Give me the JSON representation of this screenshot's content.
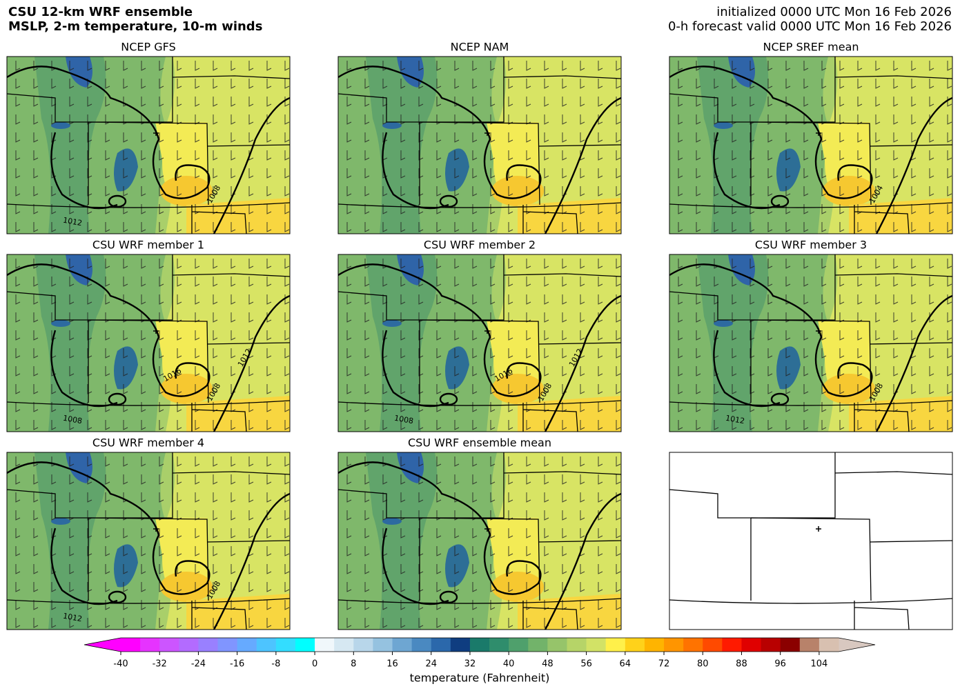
{
  "header": {
    "title": [
      "CSU 12-km WRF ensemble",
      "MSLP, 2-m temperature, 10-m winds"
    ],
    "valid": [
      "initialized 0000 UTC Mon 16 Feb 2026",
      "0-h forecast valid 0000 UTC Mon 16 Feb 2026"
    ]
  },
  "panels": [
    {
      "title": "NCEP GFS",
      "contour_labels": [
        "1008",
        "1012"
      ]
    },
    {
      "title": "NCEP NAM",
      "contour_labels": []
    },
    {
      "title": "NCEP SREF mean",
      "contour_labels": [
        "1004"
      ]
    },
    {
      "title": "CSU WRF member 1",
      "contour_labels": [
        "1008",
        "1008",
        "1012",
        "1016"
      ]
    },
    {
      "title": "CSU WRF member 2",
      "contour_labels": [
        "1008",
        "1008",
        "1012",
        "1016"
      ]
    },
    {
      "title": "CSU WRF member 3",
      "contour_labels": [
        "1008",
        "1012"
      ]
    },
    {
      "title": "CSU WRF member 4",
      "contour_labels": [
        "1008",
        "1012"
      ]
    },
    {
      "title": "CSU WRF ensemble mean",
      "contour_labels": []
    }
  ],
  "colorbar": {
    "label": "temperature (Fahrenheit)",
    "lim": [
      -40,
      108
    ],
    "ticks": [
      -40,
      -32,
      -24,
      -16,
      -8,
      0,
      8,
      16,
      24,
      32,
      40,
      48,
      56,
      64,
      72,
      80,
      88,
      96,
      104
    ],
    "colors": [
      "#ff00ff",
      "#e633ff",
      "#cc55ff",
      "#b36bff",
      "#9980ff",
      "#8095ff",
      "#66aaff",
      "#4dc4ff",
      "#33ddff",
      "#00ffff",
      "#f0f7fb",
      "#d6e8f2",
      "#b8d6ea",
      "#95c2e0",
      "#6ea6d2",
      "#4a89c1",
      "#2b68ab",
      "#0f3d80",
      "#1a7a6a",
      "#2f8d6c",
      "#4fa06c",
      "#72b36a",
      "#96c46a",
      "#b6d468",
      "#d2e266",
      "#fff04a",
      "#ffd21a",
      "#ffb400",
      "#ff9500",
      "#ff7300",
      "#ff4a00",
      "#ff1a00",
      "#e00000",
      "#b80000",
      "#8b0000",
      "#b8826a",
      "#d8c0b0"
    ],
    "extend_colors": [
      "#ff00ff",
      "#d8c8c0"
    ]
  }
}
